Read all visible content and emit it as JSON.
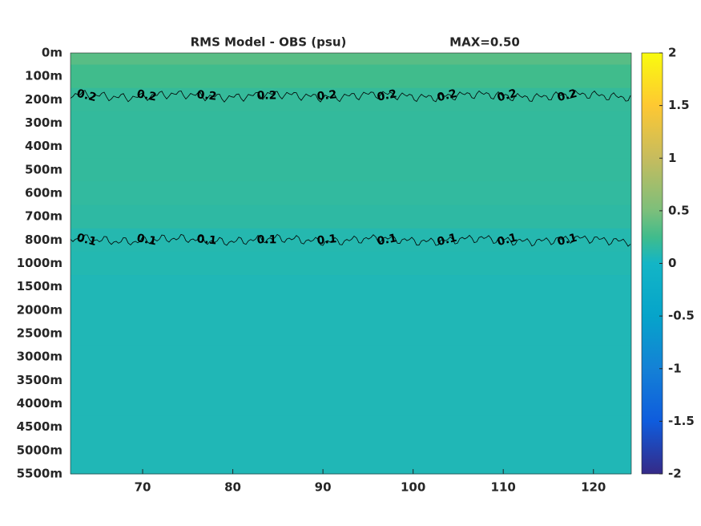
{
  "chart_data": {
    "type": "heatmap",
    "title": "RMS Model - OBS (psu)",
    "annotation": "MAX=0.50",
    "xlim": [
      62,
      124.2
    ],
    "xticks": [
      70,
      80,
      90,
      100,
      110,
      120
    ],
    "categories": [
      "0m",
      "100m",
      "200m",
      "300m",
      "400m",
      "500m",
      "600m",
      "700m",
      "800m",
      "1000m",
      "1500m",
      "2000m",
      "2500m",
      "3000m",
      "3500m",
      "4000m",
      "4500m",
      "5000m",
      "5500m"
    ],
    "values": [
      0.35,
      0.25,
      0.19,
      0.18,
      0.18,
      0.18,
      0.17,
      0.15,
      0.1,
      0.09,
      0.07,
      0.07,
      0.07,
      0.07,
      0.07,
      0.07,
      0.07,
      0.07,
      0.07
    ],
    "clim": [
      -2,
      2
    ],
    "cticks": [
      {
        "value": -2,
        "label": "-2"
      },
      {
        "value": -1.5,
        "label": "-1.5"
      },
      {
        "value": -1,
        "label": "-1"
      },
      {
        "value": -0.5,
        "label": "-0.5"
      },
      0,
      {
        "value": 0.5,
        "label": "0.5"
      },
      1,
      {
        "value": 1.5,
        "label": "1.5"
      },
      2
    ],
    "contours": [
      {
        "level": 0.2,
        "label": "0.2"
      },
      {
        "level": 0.1,
        "label": "0.1"
      }
    ],
    "colormap": "parula"
  }
}
